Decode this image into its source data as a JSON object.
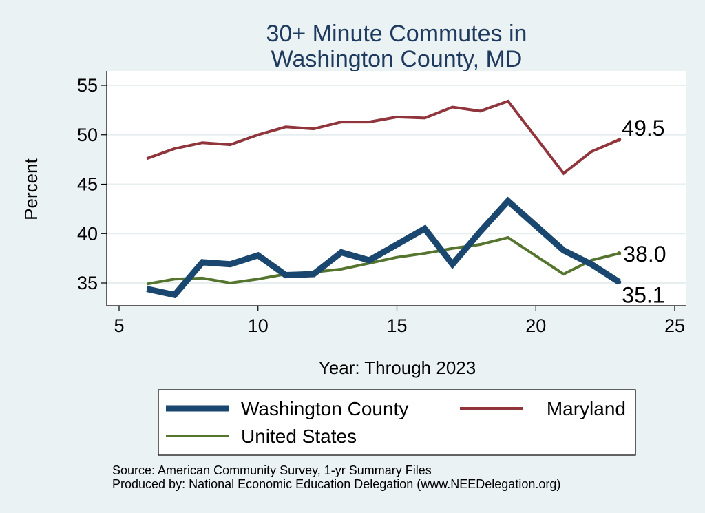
{
  "chart_data": {
    "type": "line",
    "title": [
      "30+ Minute Commutes in",
      "Washington County, MD"
    ],
    "xlabel": "Year: Through 2023",
    "ylabel": "Percent",
    "xlim": [
      5,
      25
    ],
    "ylim": [
      32.5,
      56
    ],
    "xticks": [
      5,
      10,
      15,
      20,
      25
    ],
    "yticks": [
      35,
      40,
      45,
      50,
      55
    ],
    "grid": true,
    "series": [
      {
        "name": "Washington County",
        "color": "#1a476f",
        "x": [
          6,
          7,
          8,
          9,
          10,
          11,
          12,
          13,
          14,
          15,
          16,
          17,
          18,
          19,
          21,
          22,
          23
        ],
        "values": [
          34.4,
          33.8,
          37.1,
          36.9,
          37.8,
          35.8,
          35.9,
          38.1,
          37.3,
          38.9,
          40.5,
          36.9,
          40.2,
          43.3,
          38.3,
          36.9,
          35.1
        ],
        "end_label": "35.1"
      },
      {
        "name": "Maryland",
        "color": "#90353b",
        "x": [
          6,
          7,
          8,
          9,
          10,
          11,
          12,
          13,
          14,
          15,
          16,
          17,
          18,
          19,
          21,
          22,
          23
        ],
        "values": [
          47.6,
          48.6,
          49.2,
          49.0,
          50.0,
          50.8,
          50.6,
          51.3,
          51.3,
          51.8,
          51.7,
          52.8,
          52.4,
          53.4,
          46.1,
          48.3,
          49.5
        ],
        "end_label": "49.5"
      },
      {
        "name": "United States",
        "color": "#55752f",
        "x": [
          6,
          7,
          8,
          9,
          10,
          11,
          12,
          13,
          14,
          15,
          16,
          17,
          18,
          19,
          21,
          22,
          23
        ],
        "values": [
          34.9,
          35.4,
          35.5,
          35.0,
          35.4,
          35.9,
          36.1,
          36.4,
          37.0,
          37.6,
          38.0,
          38.5,
          38.9,
          39.6,
          35.9,
          37.3,
          38.0
        ],
        "end_label": "38.0"
      }
    ],
    "legend": {
      "placement": "bottom",
      "entries": [
        "Washington County",
        "Maryland",
        "United States"
      ]
    }
  },
  "footnotes": {
    "source": "Source: American Community Survey, 1-yr Summary Files",
    "produced_by": "Produced by: National Economic Education Delegation (www.NEEDelegation.org)"
  }
}
